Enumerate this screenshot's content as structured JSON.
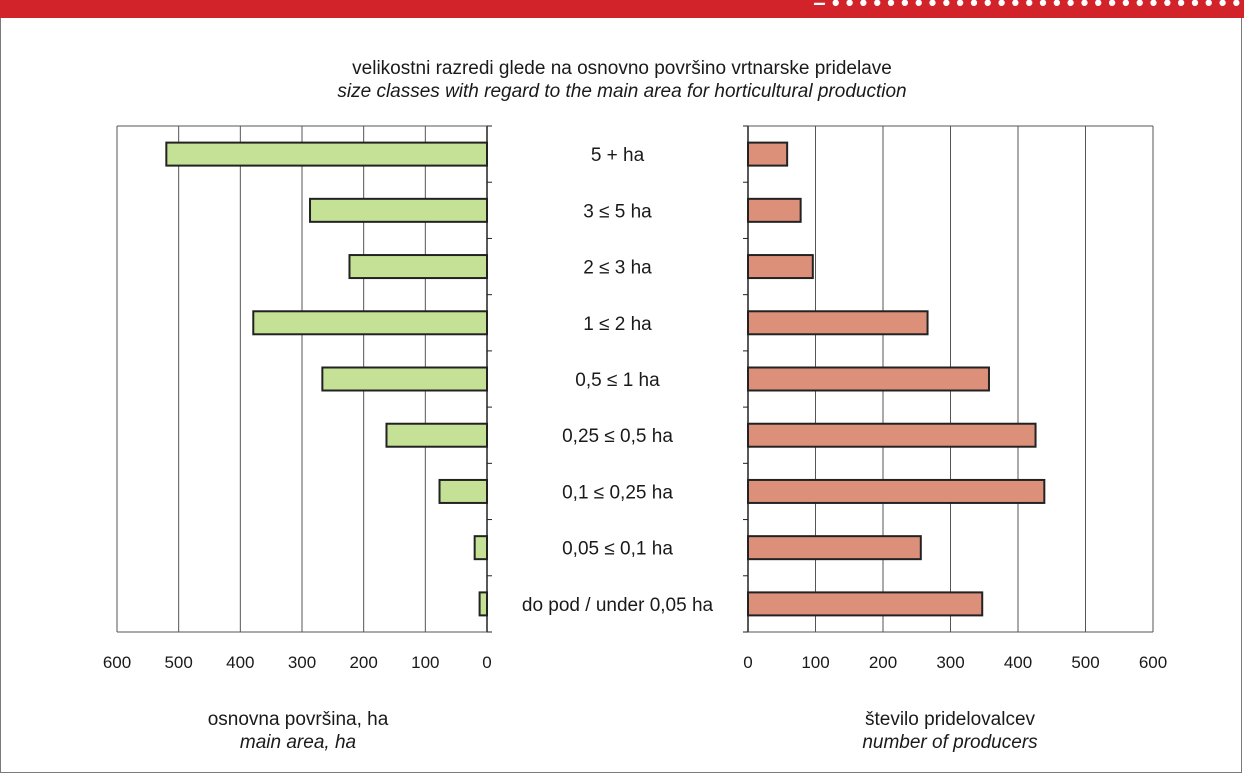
{
  "banner": {
    "text": "– • • • • • • • • • • • • • • • • • • • • • • • • • • • • • •",
    "color": "#d2232a"
  },
  "header": {
    "line1": "velikostni razredi glede na osnovno površino vrtnarske pridelave",
    "line2": "size classes with regard to the main area for horticultural production"
  },
  "chart_data": [
    {
      "type": "bar",
      "orientation": "horizontal",
      "direction": "right-to-left",
      "categories": [
        "5 + ha",
        "3 ≤ 5 ha",
        "2 ≤ 3 ha",
        "1 ≤ 2 ha",
        "0,5 ≤ 1 ha",
        "0,25 ≤ 0,5 ha",
        "0,1 ≤ 0,25 ha",
        "0,05 ≤ 0,1 ha",
        "do pod / under 0,05 ha"
      ],
      "values": [
        520,
        287,
        223,
        379,
        267,
        163,
        77,
        20,
        12
      ],
      "xlabel": "osnovna površina, ha",
      "xlabel_en": "main area, ha",
      "xlim": [
        0,
        600
      ],
      "xticks": [
        "600",
        "500",
        "400",
        "300",
        "200",
        "100",
        "0"
      ],
      "grid": true,
      "color": "#c4e196"
    },
    {
      "type": "bar",
      "orientation": "horizontal",
      "direction": "left-to-right",
      "categories": [
        "5 + ha",
        "3 ≤ 5 ha",
        "2 ≤ 3 ha",
        "1 ≤ 2 ha",
        "0,5 ≤ 1 ha",
        "0,25 ≤ 0,5 ha",
        "0,1 ≤ 0,25 ha",
        "0,05 ≤ 0,1 ha",
        "do pod / under 0,05 ha"
      ],
      "values": [
        58,
        78,
        96,
        266,
        357,
        426,
        439,
        256,
        347
      ],
      "xlabel": "število pridelovalcev",
      "xlabel_en": "number of producers",
      "xlim": [
        0,
        600
      ],
      "xticks": [
        "0",
        "100",
        "200",
        "300",
        "400",
        "500",
        "600"
      ],
      "grid": true,
      "color": "#dc907a"
    }
  ]
}
